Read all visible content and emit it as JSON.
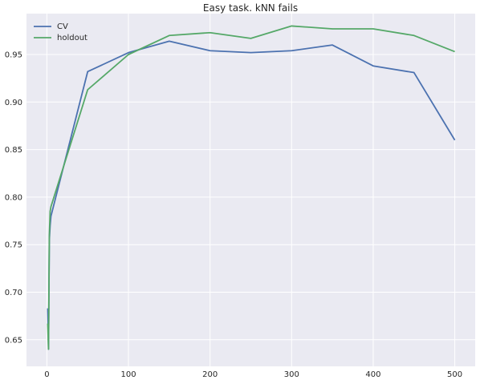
{
  "chart_data": {
    "type": "line",
    "title": "Easy task. kNN fails",
    "xlabel": "",
    "ylabel": "",
    "xlim": [
      -25,
      525
    ],
    "ylim": [
      0.622,
      0.993
    ],
    "grid": true,
    "legend_position": "top-left",
    "xticks": [
      0,
      100,
      200,
      300,
      400,
      500
    ],
    "yticks": [
      0.65,
      0.7,
      0.75,
      0.8,
      0.85,
      0.9,
      0.95
    ],
    "xtick_labels": [
      "0",
      "100",
      "200",
      "300",
      "400",
      "500"
    ],
    "ytick_labels": [
      "0.65",
      "0.70",
      "0.75",
      "0.80",
      "0.85",
      "0.90",
      "0.95"
    ],
    "series": [
      {
        "name": "CV",
        "color": "#4c72b0",
        "x": [
          1,
          2,
          3,
          4,
          5,
          50,
          100,
          150,
          200,
          250,
          300,
          350,
          400,
          450,
          500
        ],
        "y": [
          0.683,
          0.64,
          0.755,
          0.77,
          0.78,
          0.932,
          0.952,
          0.964,
          0.954,
          0.952,
          0.954,
          0.96,
          0.938,
          0.931,
          0.86
        ]
      },
      {
        "name": "holdout",
        "color": "#55a868",
        "x": [
          1,
          2,
          3,
          4,
          5,
          50,
          100,
          150,
          200,
          250,
          300,
          350,
          400,
          450,
          500
        ],
        "y": [
          0.667,
          0.64,
          0.76,
          0.785,
          0.79,
          0.913,
          0.95,
          0.97,
          0.973,
          0.967,
          0.98,
          0.977,
          0.977,
          0.97,
          0.953
        ]
      }
    ]
  }
}
